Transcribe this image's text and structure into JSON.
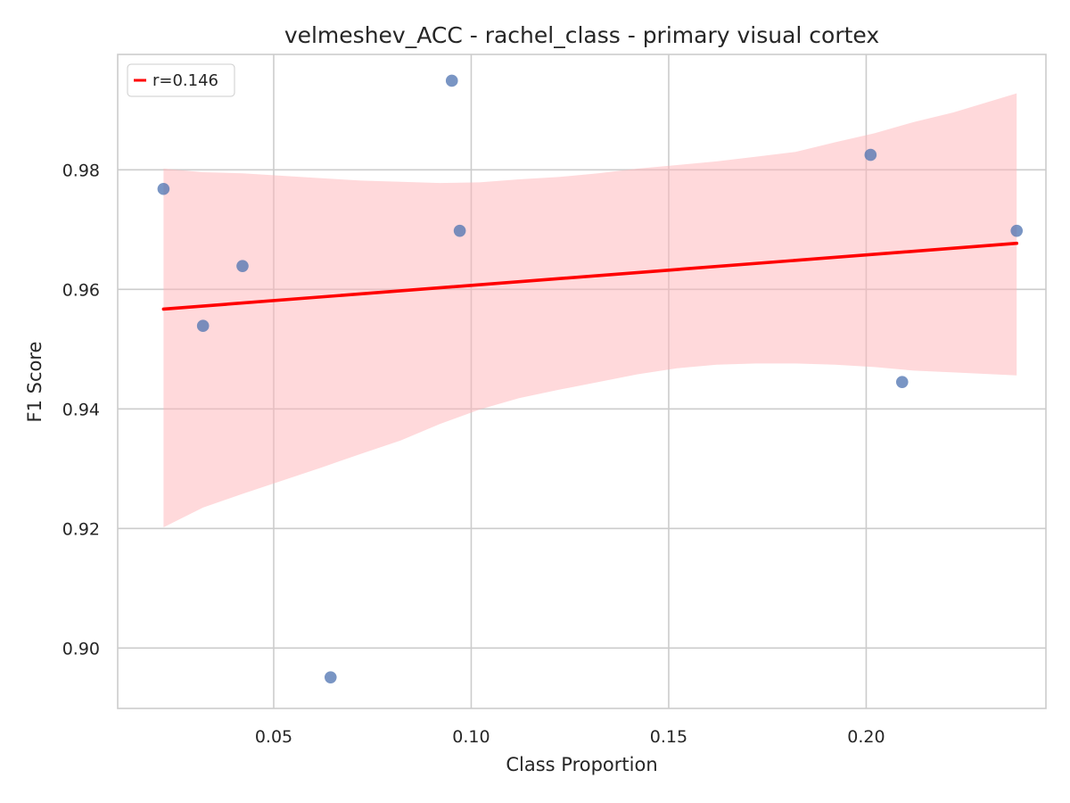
{
  "chart_data": {
    "type": "scatter",
    "title": "velmeshev_ACC - rachel_class - primary visual cortex",
    "xlabel": "Class Proportion",
    "ylabel": "F1 Score",
    "xlim": [
      0.0105,
      0.2455
    ],
    "ylim": [
      0.8899,
      0.9993
    ],
    "xticks": [
      0.05,
      0.1,
      0.15,
      0.2
    ],
    "xtick_labels": [
      "0.05",
      "0.10",
      "0.15",
      "0.20"
    ],
    "yticks": [
      0.9,
      0.92,
      0.94,
      0.96,
      0.98
    ],
    "ytick_labels": [
      "0.90",
      "0.92",
      "0.94",
      "0.96",
      "0.98"
    ],
    "grid": true,
    "points": {
      "x": [
        0.0221,
        0.0321,
        0.0421,
        0.0644,
        0.0951,
        0.0971,
        0.2011,
        0.2091,
        0.2381
      ],
      "y": [
        0.9768,
        0.9539,
        0.9639,
        0.8951,
        0.9949,
        0.9698,
        0.9825,
        0.9445,
        0.9698
      ],
      "color": "#4c72b0"
    },
    "regression": {
      "x": [
        0.0221,
        0.2381
      ],
      "y": [
        0.9567,
        0.9677
      ],
      "color": "#ff0000"
    },
    "confidence_band": {
      "color": "#ffb3b8",
      "x": [
        0.0221,
        0.0321,
        0.0421,
        0.0521,
        0.0621,
        0.0721,
        0.0821,
        0.0921,
        0.1021,
        0.1121,
        0.1221,
        0.1321,
        0.1421,
        0.1521,
        0.1621,
        0.1721,
        0.1821,
        0.1921,
        0.2021,
        0.2121,
        0.2221,
        0.2381
      ],
      "upper": [
        0.9802,
        0.9796,
        0.9794,
        0.979,
        0.9786,
        0.9782,
        0.978,
        0.9778,
        0.9779,
        0.9784,
        0.9788,
        0.9794,
        0.9802,
        0.9808,
        0.9814,
        0.9822,
        0.983,
        0.9846,
        0.9861,
        0.988,
        0.9896,
        0.9928
      ],
      "lower": [
        0.9202,
        0.9235,
        0.9258,
        0.928,
        0.9302,
        0.9325,
        0.9347,
        0.9375,
        0.9399,
        0.9418,
        0.9432,
        0.9445,
        0.9458,
        0.9468,
        0.9474,
        0.9476,
        0.9476,
        0.9474,
        0.947,
        0.9464,
        0.9461,
        0.9456
      ]
    },
    "legend": {
      "position": "top-left",
      "entries": [
        {
          "label": "r=0.146",
          "color": "#ff0000"
        }
      ]
    }
  }
}
